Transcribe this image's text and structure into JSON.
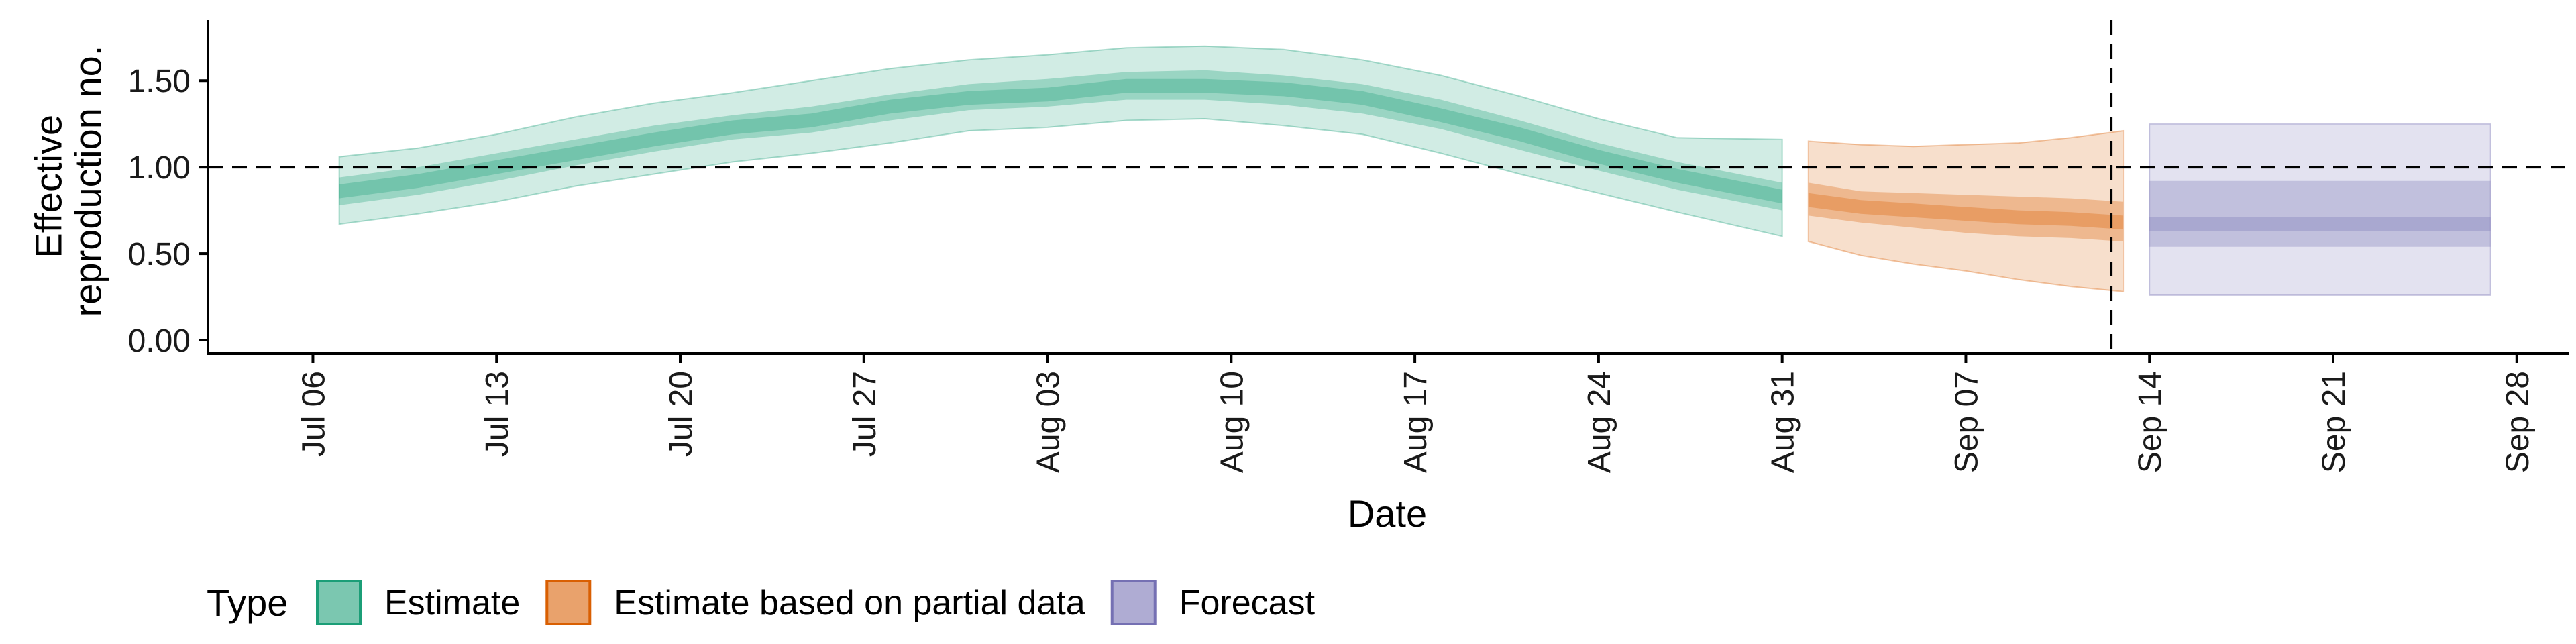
{
  "chart_data": {
    "type": "area",
    "xlabel": "Date",
    "ylabel": [
      "Effective",
      "reproduction no."
    ],
    "ylim": [
      0,
      1.85
    ],
    "y_ticks": [
      0.0,
      0.5,
      1.0,
      1.5
    ],
    "y_tick_labels": [
      "0.00",
      "0.50",
      "1.00",
      "1.50"
    ],
    "x_ticks": [
      "2020-07-06",
      "2020-07-13",
      "2020-07-20",
      "2020-07-27",
      "2020-08-03",
      "2020-08-10",
      "2020-08-17",
      "2020-08-24",
      "2020-08-31",
      "2020-09-07",
      "2020-09-14",
      "2020-09-21",
      "2020-09-28"
    ],
    "x_tick_labels": [
      "Jul 06",
      "Jul 13",
      "Jul 20",
      "Jul 27",
      "Aug 03",
      "Aug 10",
      "Aug 17",
      "Aug 24",
      "Aug 31",
      "Sep 07",
      "Sep 14",
      "Sep 21",
      "Sep 28"
    ],
    "xlim": [
      "2020-07-02",
      "2020-09-30"
    ],
    "reference_line_y": 1.0,
    "forecast_cutoff_date": "2020-09-13",
    "grid": false,
    "legend": {
      "position": "bottom-left",
      "title": "Type",
      "entries": [
        "Estimate",
        "Estimate based on partial data",
        "Forecast"
      ]
    },
    "colors": {
      "Estimate": "#1b9e77",
      "Estimate based on partial data": "#d95f02",
      "Forecast": "#7570b3"
    },
    "series": [
      {
        "name": "Estimate",
        "dates": [
          "2020-07-07",
          "2020-07-10",
          "2020-07-13",
          "2020-07-16",
          "2020-07-19",
          "2020-07-22",
          "2020-07-25",
          "2020-07-28",
          "2020-07-31",
          "2020-08-03",
          "2020-08-06",
          "2020-08-09",
          "2020-08-12",
          "2020-08-15",
          "2020-08-18",
          "2020-08-21",
          "2020-08-24",
          "2020-08-27",
          "2020-08-31"
        ],
        "median": [
          0.86,
          0.92,
          1.0,
          1.08,
          1.16,
          1.23,
          1.27,
          1.35,
          1.4,
          1.42,
          1.47,
          1.47,
          1.45,
          1.4,
          1.3,
          1.19,
          1.06,
          0.95,
          0.83
        ],
        "lower_50": [
          0.78,
          0.84,
          0.92,
          1.01,
          1.09,
          1.16,
          1.2,
          1.27,
          1.33,
          1.35,
          1.39,
          1.39,
          1.36,
          1.31,
          1.22,
          1.1,
          0.98,
          0.87,
          0.75
        ],
        "upper_50": [
          0.94,
          1.0,
          1.08,
          1.16,
          1.24,
          1.3,
          1.35,
          1.42,
          1.48,
          1.51,
          1.55,
          1.56,
          1.53,
          1.48,
          1.39,
          1.27,
          1.14,
          1.03,
          0.91
        ],
        "lower_90": [
          0.67,
          0.73,
          0.8,
          0.89,
          0.96,
          1.03,
          1.08,
          1.14,
          1.21,
          1.23,
          1.27,
          1.28,
          1.24,
          1.19,
          1.08,
          0.96,
          0.85,
          0.74,
          0.6
        ],
        "upper_90": [
          1.06,
          1.11,
          1.19,
          1.29,
          1.37,
          1.43,
          1.5,
          1.57,
          1.62,
          1.65,
          1.69,
          1.7,
          1.68,
          1.62,
          1.53,
          1.41,
          1.28,
          1.17,
          1.16
        ]
      },
      {
        "name": "Estimate based on partial data",
        "dates": [
          "2020-09-01",
          "2020-09-03",
          "2020-09-05",
          "2020-09-07",
          "2020-09-09",
          "2020-09-11",
          "2020-09-13"
        ],
        "median": [
          0.81,
          0.77,
          0.75,
          0.73,
          0.71,
          0.7,
          0.68
        ],
        "lower_50": [
          0.72,
          0.68,
          0.65,
          0.62,
          0.6,
          0.59,
          0.57
        ],
        "upper_50": [
          0.91,
          0.86,
          0.85,
          0.84,
          0.83,
          0.82,
          0.8
        ],
        "lower_90": [
          0.57,
          0.49,
          0.44,
          0.4,
          0.35,
          0.31,
          0.28
        ],
        "upper_90": [
          1.15,
          1.13,
          1.12,
          1.13,
          1.14,
          1.17,
          1.21
        ]
      },
      {
        "name": "Forecast",
        "dates": [
          "2020-09-14",
          "2020-09-27"
        ],
        "median": [
          0.67,
          0.67
        ],
        "lower_50": [
          0.54,
          0.54
        ],
        "upper_50": [
          0.92,
          0.92
        ],
        "lower_90": [
          0.26,
          0.26
        ],
        "upper_90": [
          1.25,
          1.25
        ]
      }
    ]
  }
}
